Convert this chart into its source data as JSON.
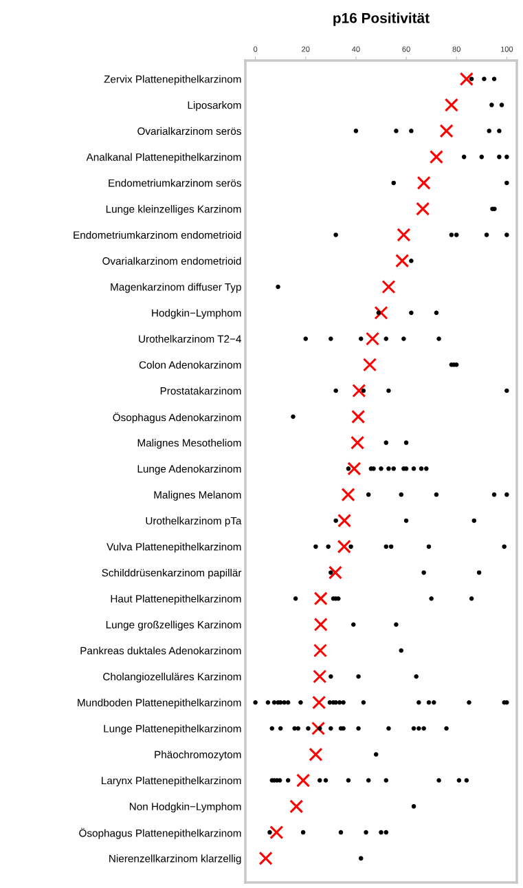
{
  "chart_data": {
    "type": "scatter",
    "title": "p16 Positivität",
    "orientation": "horizontal",
    "categories": [
      "Zervix Plattenepithelkarzinom",
      "Liposarkom",
      "Ovarialkarzinom serös",
      "Analkanal Plattenepithelkarzinom",
      "Endometriumkarzinom serös",
      "Lunge kleinzelliges Karzinom",
      "Endometriumkarzinom endometrioid",
      "Ovarialkarzinom endometrioid",
      "Magenkarzinom diffuser Typ",
      "Hodgkin−Lymphom",
      "Urothelkarzinom T2−4",
      "Colon Adenokarzinom",
      "Prostatakarzinom",
      "Ösophagus Adenokarzinom",
      "Malignes Mesotheliom",
      "Lunge Adenokarzinom",
      "Malignes Melanom",
      "Urothelkarzinom pTa",
      "Vulva Plattenepithelkarzinom",
      "Schilddrüsenkarzinom papillär",
      "Haut Plattenepithelkarzinom",
      "Lunge großzelliges Karzinom",
      "Pankreas duktales Adenokarzinom",
      "Cholangiozelluläres Karzinom",
      "Mundboden Plattenepithelkarzinom",
      "Lunge Plattenepithelkarzinom",
      "Phäochromozytom",
      "Larynx Plattenepithelkarzinom",
      "Non Hodgkin−Lymphom",
      "Ösophagus Plattenepithelkarzinom",
      "Nierenzellkarzinom klarzellig"
    ],
    "xlim": [
      -4,
      104
    ],
    "xticks": [
      0,
      20,
      40,
      60,
      80,
      100
    ],
    "grid": false,
    "legend": false,
    "series": [
      {
        "marker": "circle",
        "color": "#000000",
        "values": [
          86,
          94,
          40,
          83,
          55,
          94.3,
          32,
          62,
          9,
          49,
          20,
          78,
          32,
          15,
          52,
          37,
          45,
          32,
          24,
          30,
          16,
          39,
          58,
          30,
          0,
          6.6,
          48,
          6.6,
          63,
          5.7,
          42
        ]
      },
      {
        "marker": "circle",
        "color": "#000000",
        "values": [
          91,
          98,
          56,
          90,
          100,
          95.1,
          78,
          null,
          null,
          62,
          30,
          79,
          43,
          null,
          60,
          46,
          58,
          60,
          29,
          67,
          31,
          56,
          null,
          41,
          5,
          10,
          null,
          7.5,
          null,
          19,
          null
        ]
      },
      {
        "marker": "circle",
        "color": "#000000",
        "values": [
          95,
          null,
          62,
          97,
          null,
          null,
          80,
          null,
          null,
          72,
          42,
          80,
          53,
          null,
          null,
          47,
          72,
          87,
          38,
          89,
          32,
          null,
          null,
          64,
          7.5,
          15.6,
          null,
          8.6,
          null,
          34,
          null
        ]
      },
      {
        "marker": "circle",
        "color": "#000000",
        "values": [
          null,
          null,
          93,
          100,
          null,
          null,
          92,
          null,
          null,
          null,
          52,
          null,
          100,
          null,
          null,
          50,
          95,
          null,
          52,
          null,
          33,
          null,
          null,
          null,
          9,
          17,
          null,
          9.7,
          null,
          44,
          null
        ]
      },
      {
        "marker": "circle",
        "color": "#000000",
        "values": [
          null,
          null,
          97,
          null,
          null,
          null,
          100,
          null,
          null,
          null,
          59,
          null,
          null,
          null,
          null,
          53,
          100,
          null,
          54,
          null,
          70,
          null,
          null,
          null,
          10,
          21,
          null,
          13,
          null,
          50,
          null
        ]
      },
      {
        "marker": "circle",
        "color": "#000000",
        "values": [
          null,
          null,
          null,
          null,
          null,
          null,
          null,
          null,
          null,
          null,
          73,
          null,
          null,
          null,
          null,
          55,
          null,
          null,
          69,
          null,
          86,
          null,
          null,
          null,
          11.5,
          25.6,
          null,
          25.6,
          null,
          52,
          null
        ]
      },
      {
        "marker": "circle",
        "color": "#000000",
        "values": [
          null,
          null,
          null,
          null,
          null,
          null,
          null,
          null,
          null,
          null,
          null,
          null,
          null,
          null,
          null,
          59,
          null,
          null,
          99,
          null,
          null,
          null,
          null,
          null,
          13,
          30,
          null,
          28,
          null,
          null,
          null
        ]
      },
      {
        "marker": "circle",
        "color": "#000000",
        "values": [
          null,
          null,
          null,
          null,
          null,
          null,
          null,
          null,
          null,
          null,
          null,
          null,
          null,
          null,
          null,
          60,
          null,
          null,
          null,
          null,
          null,
          null,
          null,
          null,
          18,
          34,
          null,
          37,
          null,
          null,
          null
        ]
      },
      {
        "marker": "circle",
        "color": "#000000",
        "values": [
          null,
          null,
          null,
          null,
          null,
          null,
          null,
          null,
          null,
          null,
          null,
          null,
          null,
          null,
          null,
          63,
          null,
          null,
          null,
          null,
          null,
          null,
          null,
          null,
          29.6,
          35,
          null,
          45,
          null,
          null,
          null
        ]
      },
      {
        "marker": "circle",
        "color": "#000000",
        "values": [
          null,
          null,
          null,
          null,
          null,
          null,
          null,
          null,
          null,
          null,
          null,
          null,
          null,
          null,
          null,
          66,
          null,
          null,
          null,
          null,
          null,
          null,
          null,
          null,
          31,
          41,
          null,
          52,
          null,
          null,
          null
        ]
      },
      {
        "marker": "circle",
        "color": "#000000",
        "values": [
          null,
          null,
          null,
          null,
          null,
          null,
          null,
          null,
          null,
          null,
          null,
          null,
          null,
          null,
          null,
          68,
          null,
          null,
          null,
          null,
          null,
          null,
          null,
          null,
          32,
          53,
          null,
          73,
          null,
          null,
          null
        ]
      },
      {
        "marker": "circle",
        "color": "#000000",
        "values": [
          null,
          null,
          null,
          null,
          null,
          null,
          null,
          null,
          null,
          null,
          null,
          null,
          null,
          null,
          null,
          null,
          null,
          null,
          null,
          null,
          null,
          null,
          null,
          null,
          33.5,
          63,
          null,
          81,
          null,
          null,
          null
        ]
      },
      {
        "marker": "circle",
        "color": "#000000",
        "values": [
          null,
          null,
          null,
          null,
          null,
          null,
          null,
          null,
          null,
          null,
          null,
          null,
          null,
          null,
          null,
          null,
          null,
          null,
          null,
          null,
          null,
          null,
          null,
          null,
          35,
          65,
          null,
          84,
          null,
          null,
          null
        ]
      },
      {
        "marker": "circle",
        "color": "#000000",
        "values": [
          null,
          null,
          null,
          null,
          null,
          null,
          null,
          null,
          null,
          null,
          null,
          null,
          null,
          null,
          null,
          null,
          null,
          null,
          null,
          null,
          null,
          null,
          null,
          null,
          43,
          67,
          null,
          null,
          null,
          null,
          null
        ]
      },
      {
        "marker": "circle",
        "color": "#000000",
        "values": [
          null,
          null,
          null,
          null,
          null,
          null,
          null,
          null,
          null,
          null,
          null,
          null,
          null,
          null,
          null,
          null,
          null,
          null,
          null,
          null,
          null,
          null,
          null,
          null,
          65,
          76,
          null,
          null,
          null,
          null,
          null
        ]
      },
      {
        "marker": "circle",
        "color": "#000000",
        "values": [
          null,
          null,
          null,
          null,
          null,
          null,
          null,
          null,
          null,
          null,
          null,
          null,
          null,
          null,
          null,
          null,
          null,
          null,
          null,
          null,
          null,
          null,
          null,
          null,
          69,
          null,
          null,
          null,
          null,
          null,
          null
        ]
      },
      {
        "marker": "circle",
        "color": "#000000",
        "values": [
          null,
          null,
          null,
          null,
          null,
          null,
          null,
          null,
          null,
          null,
          null,
          null,
          null,
          null,
          null,
          null,
          null,
          null,
          null,
          null,
          null,
          null,
          null,
          null,
          71,
          null,
          null,
          null,
          null,
          null,
          null
        ]
      },
      {
        "marker": "circle",
        "color": "#000000",
        "values": [
          null,
          null,
          null,
          null,
          null,
          null,
          null,
          null,
          null,
          null,
          null,
          null,
          null,
          null,
          null,
          null,
          null,
          null,
          null,
          null,
          null,
          null,
          null,
          null,
          85,
          null,
          null,
          null,
          null,
          null,
          null
        ]
      },
      {
        "marker": "circle",
        "color": "#000000",
        "values": [
          null,
          null,
          null,
          null,
          null,
          null,
          null,
          null,
          null,
          null,
          null,
          null,
          null,
          null,
          null,
          null,
          null,
          null,
          null,
          null,
          null,
          null,
          null,
          null,
          99,
          null,
          null,
          null,
          null,
          null,
          null
        ]
      },
      {
        "marker": "circle",
        "color": "#000000",
        "values": [
          null,
          null,
          null,
          null,
          null,
          null,
          null,
          null,
          null,
          null,
          null,
          null,
          null,
          null,
          null,
          null,
          null,
          null,
          null,
          null,
          null,
          null,
          null,
          null,
          100,
          null,
          null,
          null,
          null,
          null,
          null
        ]
      },
      {
        "marker": "cross",
        "color": "#ff0000",
        "values": [
          84,
          78,
          76,
          72,
          67,
          66.6,
          59,
          58.4,
          53,
          50,
          46.6,
          45.5,
          41.2,
          40.9,
          40.6,
          39.3,
          36.9,
          35.4,
          35.3,
          31.8,
          26,
          26,
          25.8,
          25.6,
          25.3,
          25,
          24,
          19,
          16.3,
          8.4,
          4.1
        ]
      }
    ]
  }
}
